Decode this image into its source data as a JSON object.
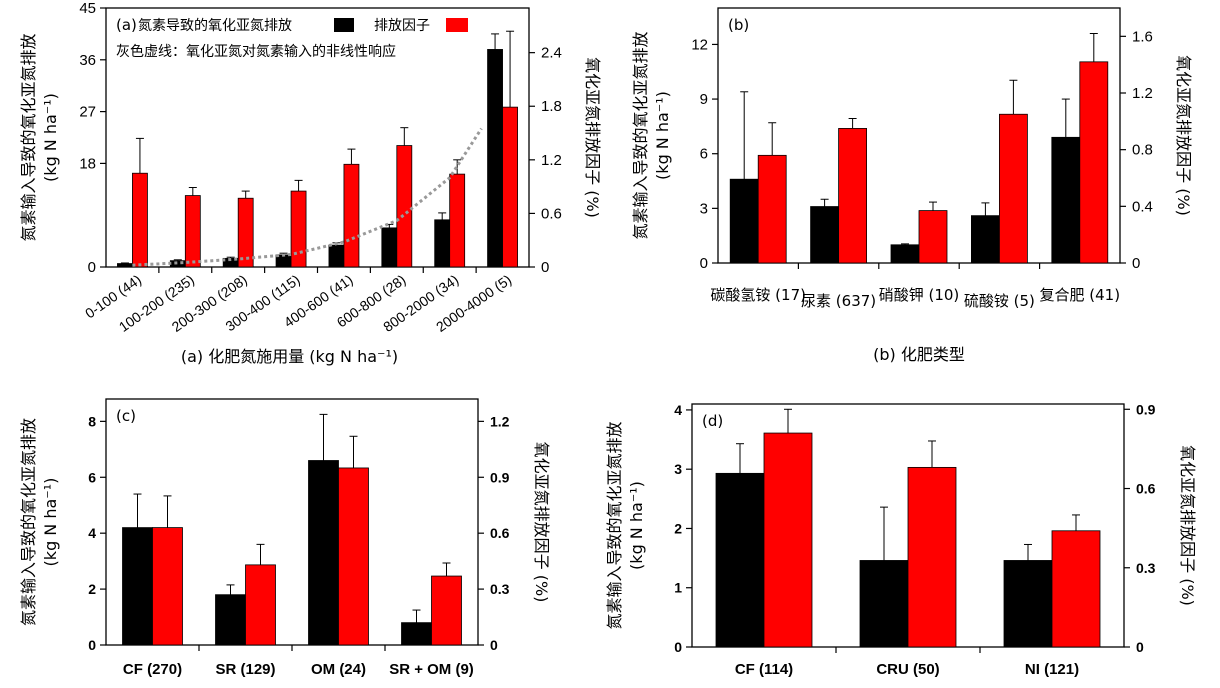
{
  "chart_data": [
    {
      "id": "a",
      "type": "bar",
      "panel_label": "(a)",
      "legend": {
        "label_black": "氮素导致的氧化亚氮排放",
        "label_red": "排放因子",
        "note": "灰色虚线：氧化亚氮对氮素输入的非线性响应"
      },
      "xlabel": "(a) 化肥氮施用量 (kg N ha⁻¹)",
      "ylabel": "氮素输入导致的氧化亚氮排放",
      "ylabel_unit": "(kg N ha⁻¹)",
      "y2label": "氧化亚氮排放因子 (%)",
      "categories": [
        "0-100 (44)",
        "100-200 (235)",
        "200-300 (208)",
        "300-400 (115)",
        "400-600 (41)",
        "600-800 (28)",
        "800-2000 (34)",
        "2000-4000 (5)"
      ],
      "ylim": [
        0,
        45
      ],
      "yticks": [
        0,
        18,
        27,
        36,
        45
      ],
      "y2lim": [
        0,
        2.9
      ],
      "y2ticks": [
        0,
        0.6,
        1.2,
        1.8,
        2.4
      ],
      "series": [
        {
          "axis": "left",
          "color": "#000000",
          "values": [
            0.6,
            1.1,
            1.5,
            2.1,
            3.8,
            6.8,
            8.2,
            37.8
          ],
          "errors": [
            0.1,
            0.15,
            0.2,
            0.3,
            0.4,
            0.6,
            1.2,
            2.7
          ]
        },
        {
          "axis": "right",
          "color": "#ff0000",
          "values": [
            1.05,
            0.8,
            0.77,
            0.85,
            1.15,
            1.36,
            1.04,
            1.79
          ],
          "errors": [
            0.39,
            0.09,
            0.08,
            0.12,
            0.17,
            0.2,
            0.16,
            0.85
          ]
        }
      ],
      "trend": {
        "color": "#999999",
        "x": [
          0.5,
          1.5,
          2.5,
          3.5,
          4.5,
          5.5,
          6.5,
          7.1
        ],
        "y": [
          0.02,
          0.05,
          0.09,
          0.14,
          0.28,
          0.52,
          1.0,
          1.55
        ]
      }
    },
    {
      "id": "b",
      "type": "bar",
      "panel_label": "(b)",
      "xlabel": "(b) 化肥类型",
      "ylabel": "氮素输入导致的氧化亚氮排放",
      "ylabel_unit": "(kg N ha⁻¹)",
      "y2label": "氧化亚氮排放因子 (%)",
      "categories": [
        "碳酸氢铵 (17)",
        "尿素 (637)",
        "硝酸钾 (10)",
        "硫酸铵 (5)",
        "复合肥 (41)"
      ],
      "ylim": [
        0,
        14
      ],
      "yticks": [
        0,
        3,
        6,
        9,
        12
      ],
      "y2lim": [
        0,
        1.8
      ],
      "y2ticks": [
        0,
        0.4,
        0.8,
        1.2,
        1.6
      ],
      "series": [
        {
          "axis": "left",
          "color": "#000000",
          "values": [
            4.6,
            3.1,
            1.0,
            2.6,
            6.9
          ],
          "errors": [
            4.8,
            0.4,
            0.05,
            0.7,
            2.1
          ]
        },
        {
          "axis": "right",
          "color": "#ff0000",
          "values": [
            0.76,
            0.95,
            0.37,
            1.05,
            1.42
          ],
          "errors": [
            0.23,
            0.07,
            0.06,
            0.24,
            0.2
          ]
        }
      ]
    },
    {
      "id": "c",
      "type": "bar",
      "panel_label": "(c)",
      "ylabel": "氮素输入导致的氧化亚氮排放",
      "ylabel_unit": "(kg N ha⁻¹)",
      "y2label": "氧化亚氮排放因子 (%)",
      "categories": [
        "CF (270)",
        "SR (129)",
        "OM (24)",
        "SR + OM (9)"
      ],
      "ylim": [
        0,
        8.8
      ],
      "yticks": [
        0,
        2,
        4,
        6,
        8
      ],
      "y2lim": [
        0,
        1.32
      ],
      "y2ticks": [
        0,
        0.3,
        0.6,
        0.9,
        1.2
      ],
      "series": [
        {
          "axis": "left",
          "color": "#000000",
          "values": [
            4.2,
            1.8,
            6.6,
            0.8
          ],
          "errors": [
            1.2,
            0.35,
            1.65,
            0.45
          ]
        },
        {
          "axis": "right",
          "color": "#ff0000",
          "values": [
            0.63,
            0.43,
            0.95,
            0.37
          ],
          "errors": [
            0.17,
            0.11,
            0.17,
            0.07
          ]
        }
      ]
    },
    {
      "id": "d",
      "type": "bar",
      "panel_label": "(d)",
      "ylabel": "氮素输入导致的氧化亚氮排放",
      "ylabel_unit": "(kg N ha⁻¹)",
      "y2label": "氧化亚氮排放因子 (%)",
      "categories": [
        "CF (114)",
        "CRU (50)",
        "NI (121)"
      ],
      "ylim": [
        0,
        4.1
      ],
      "yticks": [
        0,
        1,
        2,
        3,
        4
      ],
      "y2lim": [
        0,
        0.92
      ],
      "y2ticks": [
        0,
        0.3,
        0.6,
        0.9
      ],
      "series": [
        {
          "axis": "left",
          "color": "#000000",
          "values": [
            2.93,
            1.46,
            1.46
          ],
          "errors": [
            0.5,
            0.9,
            0.27
          ]
        },
        {
          "axis": "right",
          "color": "#ff0000",
          "values": [
            0.81,
            0.68,
            0.44
          ],
          "errors": [
            0.09,
            0.1,
            0.06
          ]
        }
      ]
    }
  ]
}
